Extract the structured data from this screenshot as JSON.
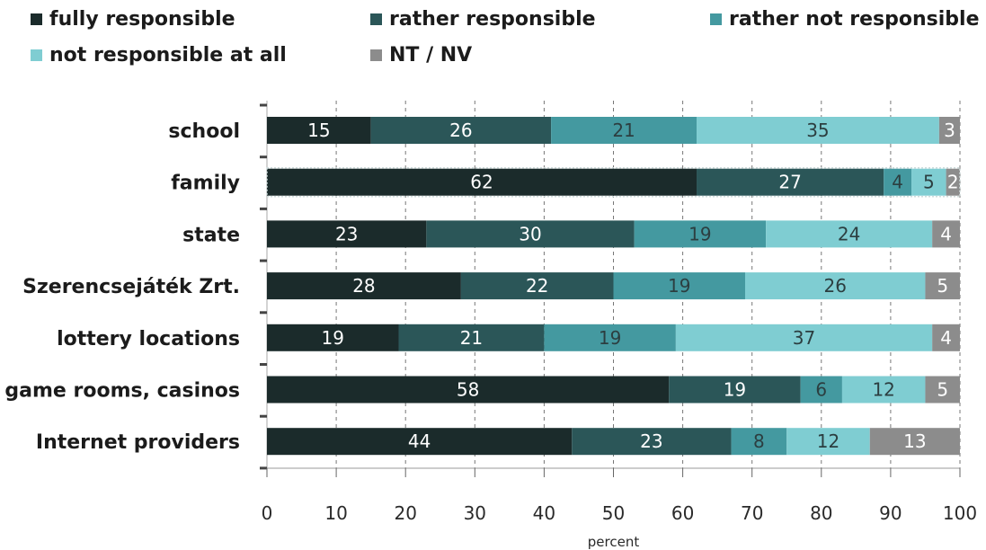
{
  "chart_data": {
    "type": "bar",
    "orientation": "horizontal",
    "stacked": true,
    "categories": [
      "school",
      "family",
      "state",
      "Szerencsejáték Zrt.",
      "lottery locations",
      "game rooms, casinos",
      "Internet providers"
    ],
    "series": [
      {
        "name": "fully responsible",
        "color": "#1b2b2b",
        "values": [
          15,
          62,
          23,
          28,
          19,
          58,
          44
        ]
      },
      {
        "name": "rather responsible",
        "color": "#2b5658",
        "values": [
          26,
          27,
          30,
          22,
          21,
          19,
          23
        ]
      },
      {
        "name": "rather not responsible",
        "color": "#4499a0",
        "values": [
          21,
          4,
          19,
          19,
          19,
          6,
          8
        ]
      },
      {
        "name": "not responsible at all",
        "color": "#7fcdd2",
        "values": [
          35,
          5,
          24,
          26,
          37,
          12,
          12
        ]
      },
      {
        "name": "NT / NV",
        "color": "#8c8c8c",
        "values": [
          3,
          2,
          4,
          5,
          4,
          5,
          13
        ]
      }
    ],
    "xlabel": "percent",
    "xlim": [
      0,
      100
    ],
    "xticks": [
      0,
      10,
      20,
      30,
      40,
      50,
      60,
      70,
      80,
      90,
      100
    ],
    "grid": "vertical dashed",
    "legend_position": "top"
  }
}
